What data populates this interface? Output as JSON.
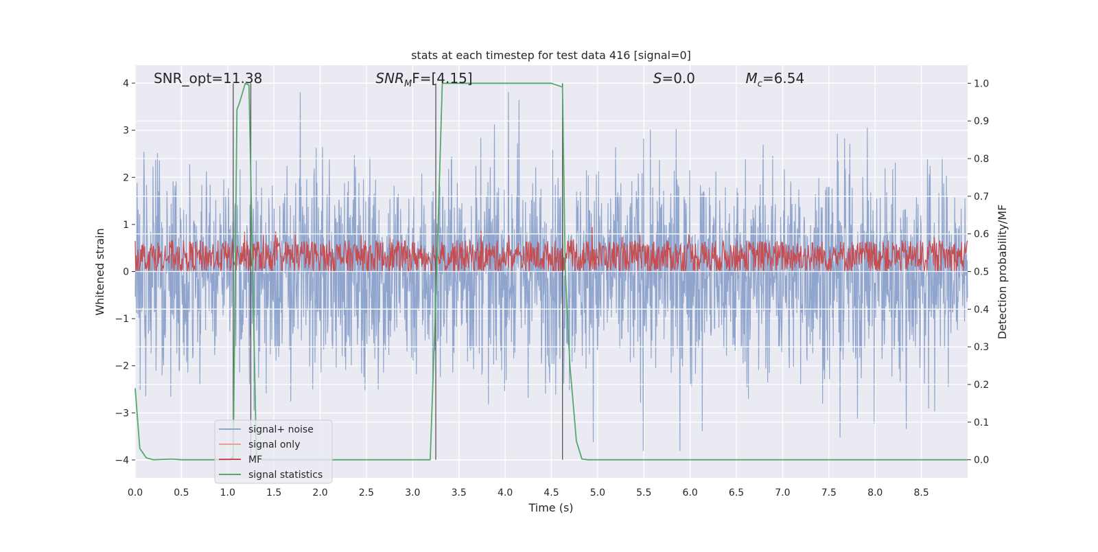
{
  "chart_data": {
    "type": "line",
    "title": "stats at each timestep for test data 416 [signal=0]",
    "xlabel": "Time (s)",
    "ylabel_left": "Whitened strain",
    "ylabel_right": "Detection probability/MF",
    "xlim": [
      0,
      9.0
    ],
    "ylim_left": [
      -4.38,
      4.38
    ],
    "ylim_right": [
      -0.048,
      1.048
    ],
    "xticks": [
      "0.0",
      "0.5",
      "1.0",
      "1.5",
      "2.0",
      "2.5",
      "3.0",
      "3.5",
      "4.0",
      "4.5",
      "5.0",
      "5.5",
      "6.0",
      "6.5",
      "7.0",
      "7.5",
      "8.0",
      "8.5"
    ],
    "yticks_left": [
      "4",
      "3",
      "2",
      "1",
      "0",
      "−1",
      "−2",
      "−3",
      "−4"
    ],
    "yticks_right": [
      "1.0",
      "0.9",
      "0.8",
      "0.7",
      "0.6",
      "0.5",
      "0.4",
      "0.3",
      "0.2",
      "0.1",
      "0.0"
    ],
    "grid": true,
    "legend_position": "lower-left",
    "annotations": [
      {
        "prefix": "SNR_opt=11.38",
        "sub": "",
        "suffix": "",
        "italic": false,
        "x": 0.2
      },
      {
        "prefix": "SNR",
        "sub": "M",
        "suffix": "F=[4.15]",
        "italic": true,
        "x": 2.6
      },
      {
        "prefix": "S",
        "sub": "",
        "suffix": "=0.0",
        "italic": true,
        "x": 5.6
      },
      {
        "prefix": "M",
        "sub": "c",
        "suffix": "=6.54",
        "italic": true,
        "x": 6.6
      }
    ],
    "vlines_x": [
      1.06,
      1.25,
      3.25,
      4.62
    ],
    "series": [
      {
        "name": "signal+ noise",
        "color": "#8fa5cd",
        "kind": "noise",
        "amplitude_range": [
          -3.8,
          3.8
        ]
      },
      {
        "name": "signal only",
        "color": "#e8a38a",
        "kind": "flat",
        "values": [
          0
        ]
      },
      {
        "name": "MF",
        "color": "#c44e52",
        "kind": "mf",
        "amplitude_range": [
          0.0,
          1.0
        ]
      },
      {
        "name": "signal statistics",
        "color": "#55a868",
        "kind": "line",
        "axis": "right",
        "x": [
          0.0,
          0.05,
          0.12,
          0.2,
          0.3,
          0.4,
          0.5,
          0.7,
          1.0,
          1.03,
          1.06,
          1.1,
          1.13,
          1.19,
          1.23,
          1.27,
          1.31,
          1.34,
          1.37,
          1.45,
          1.6,
          2.0,
          2.5,
          3.0,
          3.19,
          3.26,
          3.32,
          3.4,
          4.0,
          4.5,
          4.62,
          4.65,
          4.7,
          4.77,
          4.83,
          4.9,
          5.5,
          6.0,
          7.0,
          8.0,
          9.0
        ],
        "values": [
          0.19,
          0.03,
          0.005,
          0.0,
          0.001,
          0.002,
          0.0,
          0.0,
          0.0,
          0.0,
          0.01,
          0.93,
          0.95,
          1.0,
          0.995,
          0.5,
          0.01,
          0.003,
          0.0,
          0.0,
          0.0,
          0.0,
          0.0,
          0.0,
          0.0,
          0.5,
          1.0,
          1.0,
          1.0,
          1.0,
          0.99,
          0.5,
          0.25,
          0.05,
          0.002,
          0.0,
          0.0,
          0.0,
          0.0,
          0.0,
          0.0
        ]
      }
    ]
  }
}
